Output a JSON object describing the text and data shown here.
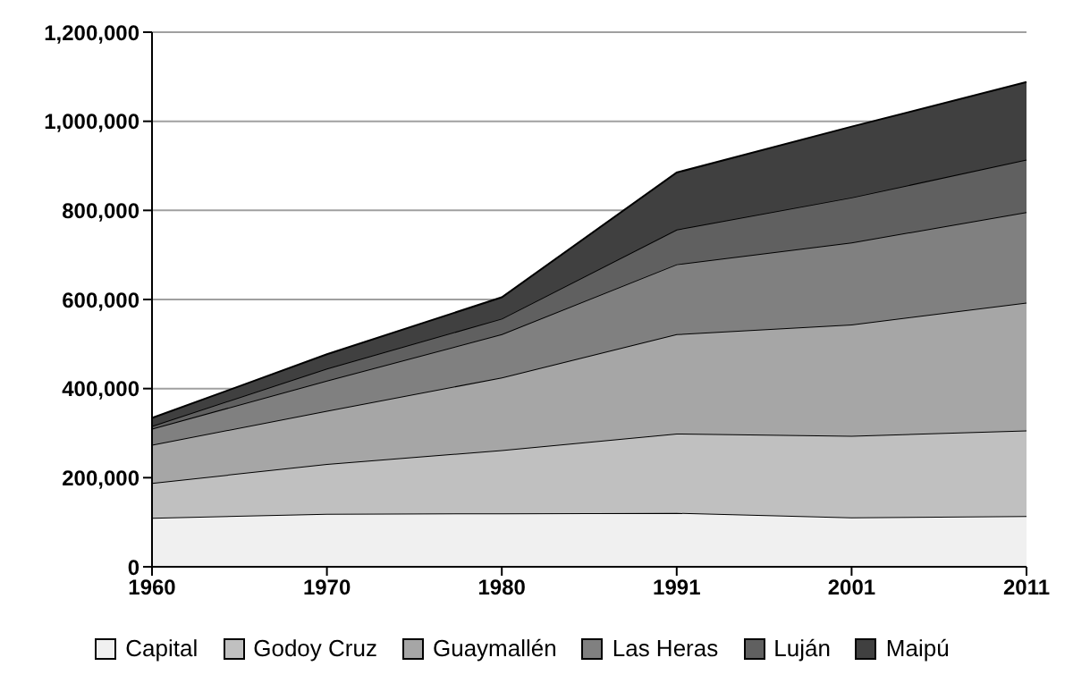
{
  "chart_data": {
    "type": "area",
    "stacked": true,
    "categories": [
      "1960",
      "1970",
      "1980",
      "1991",
      "2001",
      "2011"
    ],
    "series": [
      {
        "name": "Capital",
        "color": "#f0f0f0",
        "values": [
          110000,
          119000,
          120000,
          121000,
          111000,
          114000
        ]
      },
      {
        "name": "Godoy Cruz",
        "color": "#c0c0c0",
        "values": [
          78000,
          112000,
          142000,
          178000,
          183000,
          192000
        ]
      },
      {
        "name": "Guaymallén",
        "color": "#a6a6a6",
        "values": [
          86000,
          119000,
          163000,
          223000,
          250000,
          287000
        ]
      },
      {
        "name": "Las Heras",
        "color": "#808080",
        "values": [
          36000,
          68000,
          97000,
          157000,
          184000,
          203000
        ]
      },
      {
        "name": "Luján",
        "color": "#606060",
        "values": [
          6000,
          27000,
          35000,
          78000,
          101000,
          118000
        ]
      },
      {
        "name": "Maipú",
        "color": "#404040",
        "values": [
          18000,
          32000,
          48000,
          128000,
          159000,
          174000
        ]
      }
    ],
    "ylim": [
      0,
      1200000
    ],
    "yticks": [
      0,
      {
        "value": 200000,
        "label": "200,000"
      },
      {
        "value": 400000,
        "label": "400,000"
      },
      {
        "value": 600000,
        "label": "600,000"
      },
      {
        "value": 800000,
        "label": "800,000"
      },
      {
        "value": 1000000,
        "label": "1,000,000"
      },
      {
        "value": 1200000,
        "label": "1,200,000"
      }
    ],
    "grid": "y",
    "legend": "bottom"
  }
}
